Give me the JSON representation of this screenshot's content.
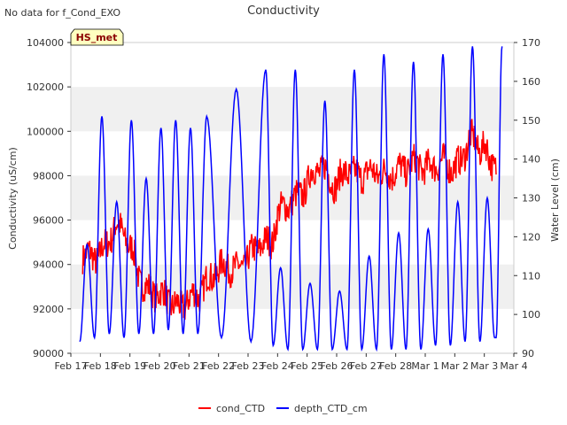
{
  "chart_data": {
    "type": "line",
    "title": "Conductivity",
    "no_data_note": "No data for f_Cond_EXO",
    "site_badge": "HS_met",
    "xlabel": "",
    "ylabel": "Conductivity (uS/cm)",
    "y2label": "Water Level (cm)",
    "x_tick_labels": [
      "Feb 17",
      "Feb 18",
      "Feb 19",
      "Feb 20",
      "Feb 21",
      "Feb 22",
      "Feb 23",
      "Feb 24",
      "Feb 25",
      "Feb 26",
      "Feb 27",
      "Feb 28",
      "Mar 1",
      "Mar 2",
      "Mar 3",
      "Mar 4"
    ],
    "xlim_days": [
      0,
      15
    ],
    "ylim": [
      90000,
      104000
    ],
    "y_ticks": [
      90000,
      92000,
      94000,
      96000,
      98000,
      100000,
      102000,
      104000
    ],
    "y2lim": [
      90,
      170
    ],
    "y2_ticks": [
      90,
      100,
      110,
      120,
      130,
      140,
      150,
      160,
      170
    ],
    "grid": "horizontal bands",
    "legend_position": "bottom-center",
    "colors": {
      "cond_CTD": "#ff0000",
      "depth_CTD_cm": "#0000ff",
      "band": "#f0f0f0",
      "badge_fill": "#ffffc0",
      "badge_text": "#8b0000"
    },
    "series": [
      {
        "name": "cond_CTD",
        "axis": "left",
        "x_days": [
          0.4,
          0.8,
          1.2,
          1.5,
          1.8,
          2.1,
          2.3,
          2.6,
          3.0,
          3.4,
          3.7,
          4.0,
          4.3,
          4.6,
          5.0,
          5.3,
          5.6,
          6.0,
          6.4,
          6.8,
          7.0,
          7.3,
          7.6,
          8.0,
          8.3,
          8.6,
          9.0,
          9.3,
          9.6,
          10.0,
          10.3,
          10.6,
          11.0,
          11.4,
          11.7,
          12.0,
          12.3,
          12.6,
          12.9,
          13.2,
          13.5,
          13.8,
          14.0,
          14.2,
          14.4
        ],
        "values": [
          94500,
          94300,
          94800,
          95800,
          95400,
          94500,
          93500,
          92800,
          92700,
          92300,
          92000,
          92500,
          92600,
          93200,
          93800,
          94000,
          93700,
          94300,
          94900,
          95000,
          96200,
          96700,
          96900,
          97600,
          98400,
          98200,
          97500,
          98300,
          98000,
          98100,
          98200,
          98000,
          98200,
          98400,
          98600,
          98300,
          98500,
          98600,
          98400,
          98500,
          99800,
          99200,
          99500,
          98400,
          98600
        ]
      },
      {
        "name": "depth_CTD_cm",
        "axis": "right",
        "peaks": [
          {
            "x": 0.55,
            "value": 118
          },
          {
            "x": 1.05,
            "value": 151
          },
          {
            "x": 1.55,
            "value": 129
          },
          {
            "x": 2.05,
            "value": 150
          },
          {
            "x": 2.55,
            "value": 135
          },
          {
            "x": 3.05,
            "value": 148
          },
          {
            "x": 3.55,
            "value": 150
          },
          {
            "x": 4.05,
            "value": 148
          },
          {
            "x": 4.6,
            "value": 151
          },
          {
            "x": 5.6,
            "value": 158
          },
          {
            "x": 6.6,
            "value": 163
          },
          {
            "x": 7.1,
            "value": 112
          },
          {
            "x": 7.6,
            "value": 163
          },
          {
            "x": 8.1,
            "value": 108
          },
          {
            "x": 8.6,
            "value": 155
          },
          {
            "x": 9.1,
            "value": 106
          },
          {
            "x": 9.6,
            "value": 163
          },
          {
            "x": 10.1,
            "value": 115
          },
          {
            "x": 10.6,
            "value": 167
          },
          {
            "x": 11.1,
            "value": 121
          },
          {
            "x": 11.6,
            "value": 165
          },
          {
            "x": 12.1,
            "value": 122
          },
          {
            "x": 12.6,
            "value": 167
          },
          {
            "x": 13.1,
            "value": 129
          },
          {
            "x": 13.6,
            "value": 169
          },
          {
            "x": 14.1,
            "value": 130
          },
          {
            "x": 14.6,
            "value": 169
          }
        ],
        "troughs": [
          {
            "x": 0.3,
            "value": 93
          },
          {
            "x": 0.8,
            "value": 94
          },
          {
            "x": 1.3,
            "value": 95
          },
          {
            "x": 1.8,
            "value": 94
          },
          {
            "x": 2.3,
            "value": 95
          },
          {
            "x": 2.8,
            "value": 95
          },
          {
            "x": 3.3,
            "value": 96
          },
          {
            "x": 3.8,
            "value": 95
          },
          {
            "x": 4.3,
            "value": 95
          },
          {
            "x": 5.1,
            "value": 94
          },
          {
            "x": 6.1,
            "value": 93
          },
          {
            "x": 6.85,
            "value": 92
          },
          {
            "x": 7.35,
            "value": 91
          },
          {
            "x": 7.85,
            "value": 91
          },
          {
            "x": 8.35,
            "value": 91
          },
          {
            "x": 8.85,
            "value": 91
          },
          {
            "x": 9.35,
            "value": 91
          },
          {
            "x": 9.85,
            "value": 91
          },
          {
            "x": 10.35,
            "value": 91
          },
          {
            "x": 10.85,
            "value": 91
          },
          {
            "x": 11.35,
            "value": 91
          },
          {
            "x": 11.85,
            "value": 91
          },
          {
            "x": 12.35,
            "value": 92
          },
          {
            "x": 12.85,
            "value": 92
          },
          {
            "x": 13.35,
            "value": 93
          },
          {
            "x": 13.85,
            "value": 93
          },
          {
            "x": 14.35,
            "value": 94
          },
          {
            "x": 14.4,
            "value": 94
          }
        ]
      }
    ]
  }
}
